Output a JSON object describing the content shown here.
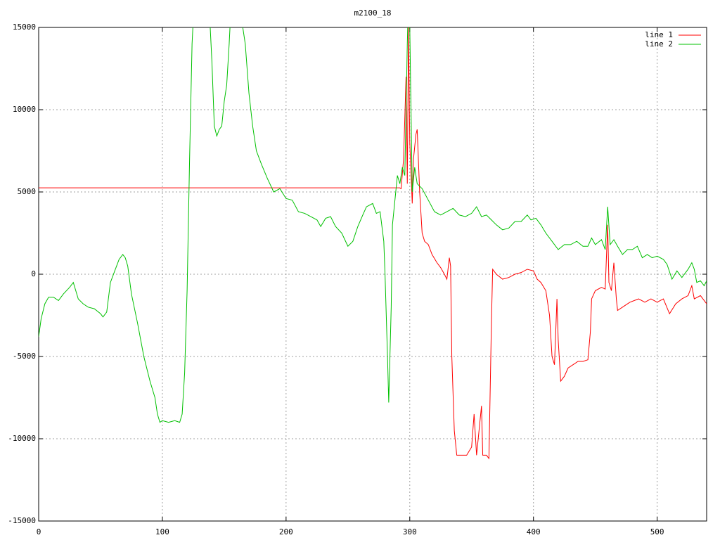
{
  "chart_data": {
    "type": "line",
    "title": "m2100_18",
    "xlim": [
      0,
      540
    ],
    "ylim": [
      -15000,
      15000
    ],
    "xticks": [
      0,
      100,
      200,
      300,
      400,
      500
    ],
    "yticks": [
      -15000,
      -10000,
      -5000,
      0,
      5000,
      10000,
      15000
    ],
    "grid": true,
    "legend": "top-right",
    "series": [
      {
        "name": "line 1",
        "color": "#ff0000",
        "x": [
          0,
          292,
          293,
          295,
          297,
          298,
          299,
          300,
          302,
          303,
          305,
          306,
          308,
          310,
          312,
          315,
          318,
          322,
          325,
          328,
          330,
          332,
          333,
          334,
          336,
          338,
          342,
          346,
          350,
          352,
          354,
          356,
          358,
          359,
          362,
          364,
          366,
          367,
          370,
          375,
          380,
          385,
          390,
          395,
          400,
          403,
          406,
          410,
          413,
          415,
          417,
          419,
          420,
          422,
          425,
          428,
          432,
          436,
          440,
          444,
          446,
          447,
          450,
          455,
          458,
          460,
          461,
          463,
          465,
          467,
          468,
          472,
          478,
          485,
          490,
          495,
          500,
          505,
          510,
          515,
          520,
          525,
          528,
          530,
          535,
          540
        ],
        "values": [
          5250,
          5250,
          5200,
          7000,
          12000,
          5500,
          15000,
          8000,
          4300,
          7000,
          8500,
          8800,
          5000,
          2500,
          2000,
          1800,
          1200,
          700,
          400,
          0,
          -300,
          1000,
          500,
          -5000,
          -9500,
          -11000,
          -11000,
          -11000,
          -10500,
          -8500,
          -11000,
          -9500,
          -8000,
          -11000,
          -11000,
          -11200,
          -3000,
          300,
          0,
          -300,
          -200,
          0,
          100,
          300,
          200,
          -300,
          -500,
          -1000,
          -2500,
          -5000,
          -5500,
          -1500,
          -4000,
          -6500,
          -6200,
          -5700,
          -5500,
          -5300,
          -5300,
          -5200,
          -3500,
          -1500,
          -1000,
          -800,
          -900,
          3000,
          -500,
          -1000,
          700,
          -1500,
          -2200,
          -2000,
          -1700,
          -1500,
          -1700,
          -1500,
          -1700,
          -1500,
          -2400,
          -1800,
          -1500,
          -1300,
          -700,
          -1500,
          -1300,
          -1800
        ]
      },
      {
        "name": "line 2",
        "color": "#00c000",
        "x": [
          0,
          2,
          5,
          8,
          12,
          16,
          20,
          25,
          28,
          32,
          36,
          40,
          45,
          50,
          52,
          55,
          58,
          62,
          65,
          68,
          70,
          72,
          75,
          80,
          85,
          90,
          94,
          96,
          98,
          100,
          105,
          110,
          114,
          116,
          118,
          120,
          122,
          124,
          126,
          130,
          134,
          138,
          140,
          142,
          144,
          146,
          148,
          150,
          152,
          154,
          156,
          158,
          160,
          162,
          165,
          167,
          170,
          173,
          176,
          180,
          185,
          190,
          195,
          200,
          205,
          210,
          215,
          220,
          225,
          228,
          232,
          236,
          240,
          245,
          250,
          254,
          258,
          262,
          265,
          270,
          273,
          276,
          279,
          280,
          282,
          283,
          285,
          286,
          288,
          290,
          292,
          294,
          296,
          298,
          299,
          300,
          301,
          302,
          304,
          306,
          310,
          315,
          320,
          325,
          330,
          335,
          340,
          345,
          350,
          354,
          358,
          362,
          366,
          370,
          375,
          380,
          385,
          390,
          395,
          398,
          402,
          406,
          410,
          415,
          420,
          425,
          430,
          435,
          440,
          444,
          447,
          450,
          455,
          458,
          460,
          462,
          465,
          468,
          472,
          476,
          480,
          484,
          488,
          492,
          496,
          500,
          505,
          508,
          512,
          516,
          520,
          525,
          528,
          530,
          532,
          535,
          538,
          540
        ],
        "values": [
          -3800,
          -2700,
          -1800,
          -1400,
          -1400,
          -1600,
          -1200,
          -800,
          -500,
          -1500,
          -1800,
          -2000,
          -2100,
          -2400,
          -2600,
          -2300,
          -500,
          300,
          900,
          1200,
          1000,
          500,
          -1200,
          -3000,
          -5000,
          -6500,
          -7500,
          -8500,
          -9000,
          -8900,
          -9000,
          -8900,
          -9000,
          -8500,
          -6000,
          -1000,
          7000,
          14000,
          17000,
          18000,
          17000,
          16000,
          13000,
          9000,
          8400,
          8800,
          9000,
          10500,
          11500,
          14000,
          17000,
          17000,
          16000,
          16000,
          15000,
          14000,
          11000,
          9000,
          7500,
          6700,
          5800,
          5000,
          5200,
          4600,
          4500,
          3800,
          3700,
          3500,
          3300,
          2900,
          3400,
          3500,
          2900,
          2500,
          1700,
          2000,
          2900,
          3600,
          4100,
          4300,
          3700,
          3800,
          2000,
          0,
          -5000,
          -7800,
          -2000,
          3000,
          4500,
          6000,
          5500,
          6500,
          6000,
          14000,
          17000,
          15000,
          10000,
          5000,
          6500,
          5500,
          5200,
          4500,
          3800,
          3600,
          3800,
          4000,
          3600,
          3500,
          3700,
          4100,
          3500,
          3600,
          3300,
          3000,
          2700,
          2800,
          3200,
          3200,
          3600,
          3300,
          3400,
          3000,
          2500,
          2000,
          1500,
          1800,
          1800,
          2000,
          1700,
          1700,
          2200,
          1800,
          2100,
          1500,
          4100,
          1800,
          2100,
          1700,
          1200,
          1500,
          1500,
          1700,
          1000,
          1200,
          1000,
          1100,
          900,
          600,
          -300,
          200,
          -200,
          300,
          700,
          300,
          -500,
          -400,
          -700,
          -400
        ]
      }
    ]
  }
}
